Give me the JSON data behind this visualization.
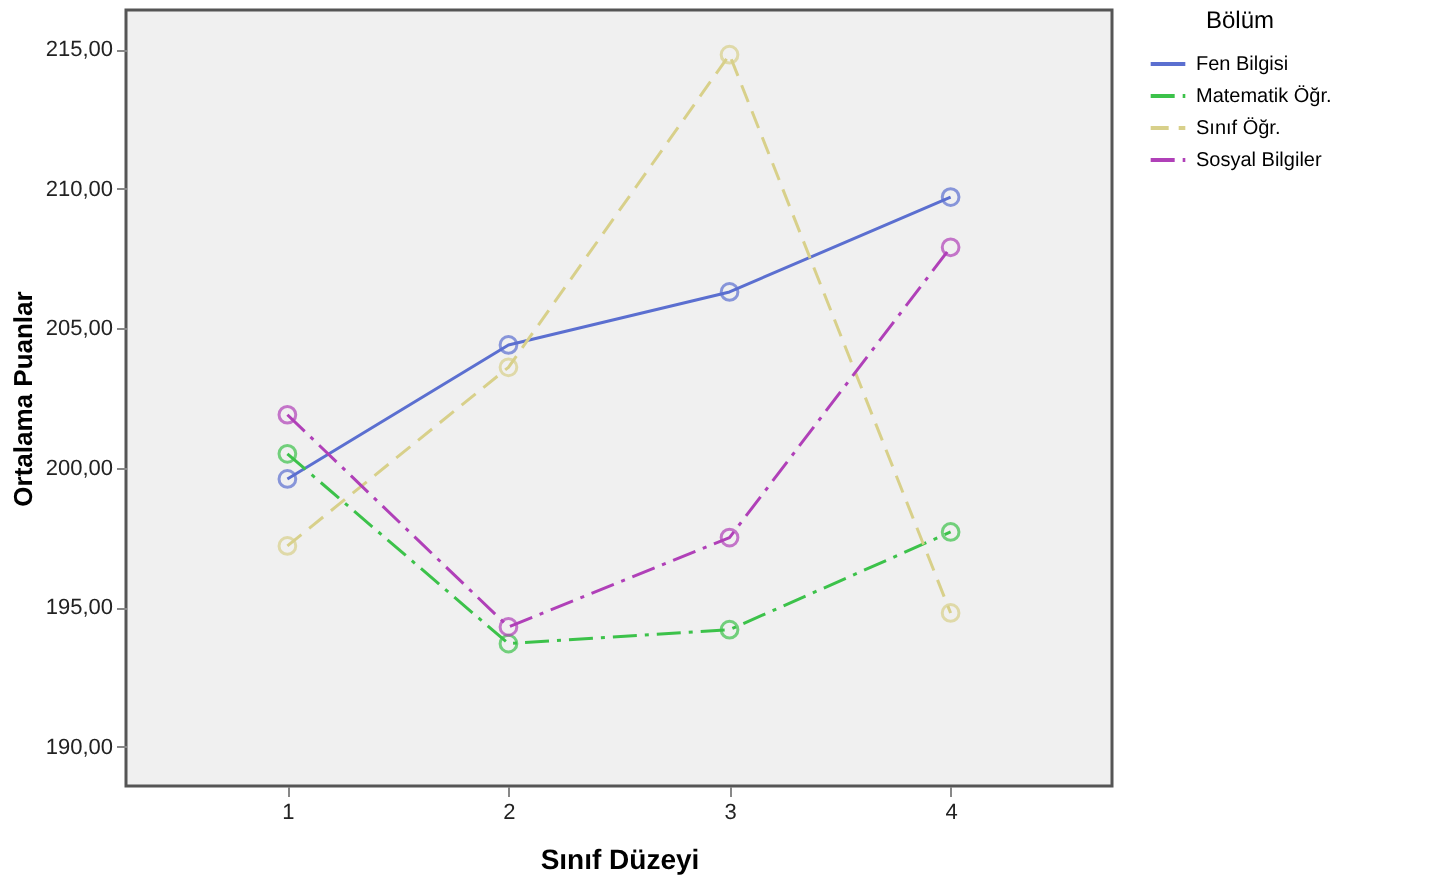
{
  "chart_data": {
    "type": "line",
    "xlabel": "Sınıf Düzeyi",
    "ylabel": "Ortalama Puanlar",
    "legend_title": "Bölüm",
    "categories": [
      "1",
      "2",
      "3",
      "4"
    ],
    "series": [
      {
        "name": "Fen Bilgisi",
        "color": "#5b6fd0",
        "line_style": "solid",
        "values": [
          199.6,
          204.4,
          206.3,
          209.7
        ]
      },
      {
        "name": "Matematik Öğr.",
        "color": "#3cc24a",
        "line_style": "dashdot",
        "values": [
          200.5,
          193.7,
          194.2,
          197.7
        ]
      },
      {
        "name": "Sınıf Öğr.",
        "color": "#d8d08a",
        "line_style": "dashed",
        "values": [
          197.2,
          203.6,
          214.8,
          194.8
        ]
      },
      {
        "name": "Sosyal Bilgiler",
        "color": "#b040b8",
        "line_style": "dashdot",
        "values": [
          201.9,
          194.3,
          197.5,
          207.9
        ]
      }
    ],
    "ylim": [
      188.6,
      216.4
    ],
    "yticks": [
      {
        "value": 190,
        "label": "190,00"
      },
      {
        "value": 195,
        "label": "195,00"
      },
      {
        "value": 200,
        "label": "200,00"
      },
      {
        "value": 205,
        "label": "205,00"
      },
      {
        "value": 210,
        "label": "210,00"
      },
      {
        "value": 215,
        "label": "215,00"
      }
    ],
    "marker": "circle",
    "grid": false,
    "legend": "top right"
  }
}
